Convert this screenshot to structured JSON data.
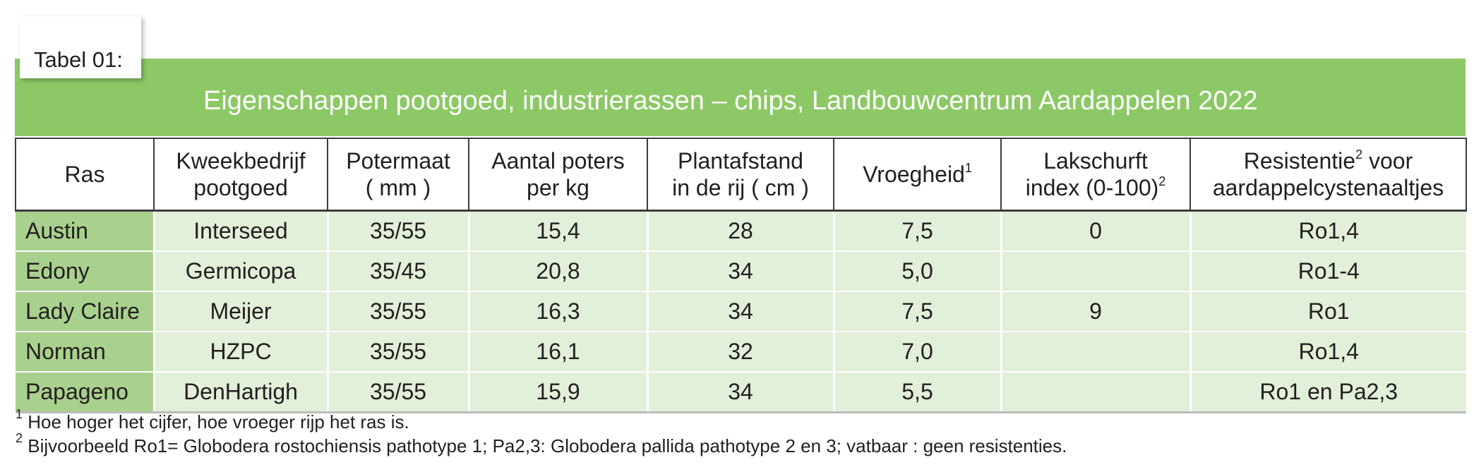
{
  "tab_label": "Tabel 01:",
  "title": "Eigenschappen pootgoed, industrierassen – chips, Landbouwcentrum Aardappelen 2022",
  "headers": [
    {
      "line1": "Ras",
      "line2": "",
      "sup": ""
    },
    {
      "line1": "Kweekbedrijf",
      "line2": "pootgoed",
      "sup": ""
    },
    {
      "line1": "Potermaat",
      "line2": "( mm )",
      "sup": ""
    },
    {
      "line1": "Aantal poters",
      "line2": "per kg",
      "sup": ""
    },
    {
      "line1": "Plantafstand",
      "line2": "in de rij ( cm )",
      "sup": ""
    },
    {
      "line1": "Vroegheid",
      "line2": "",
      "sup": "1"
    },
    {
      "line1": "Lakschurft",
      "line2": "index (0-100)",
      "sup": "2"
    },
    {
      "line1": "Resistentie",
      "line2": "aardappelcystenaaltjes",
      "sup": "2",
      "line1_after": " voor"
    }
  ],
  "rows": [
    {
      "ras": "Austin",
      "kweekbedrijf": "Interseed",
      "potermaat": "35/55",
      "poters_per_kg": "15,4",
      "plantafstand": "28",
      "vroegheid": "7,5",
      "lakschurft": "0",
      "resistentie": "Ro1,4"
    },
    {
      "ras": "Edony",
      "kweekbedrijf": "Germicopa",
      "potermaat": "35/45",
      "poters_per_kg": "20,8",
      "plantafstand": "34",
      "vroegheid": "5,0",
      "lakschurft": "",
      "resistentie": "Ro1-4"
    },
    {
      "ras": "Lady Claire",
      "kweekbedrijf": "Meijer",
      "potermaat": "35/55",
      "poters_per_kg": "16,3",
      "plantafstand": "34",
      "vroegheid": "7,5",
      "lakschurft": "9",
      "resistentie": "Ro1"
    },
    {
      "ras": "Norman",
      "kweekbedrijf": "HZPC",
      "potermaat": "35/55",
      "poters_per_kg": "16,1",
      "plantafstand": "32",
      "vroegheid": "7,0",
      "lakschurft": "",
      "resistentie": "Ro1,4"
    },
    {
      "ras": "Papageno",
      "kweekbedrijf": "DenHartigh",
      "potermaat": "35/55",
      "poters_per_kg": "15,9",
      "plantafstand": "34",
      "vroegheid": "5,5",
      "lakschurft": "",
      "resistentie": "Ro1 en Pa2,3"
    }
  ],
  "footnotes": [
    {
      "mark": "1",
      "text": " Hoe hoger het cijfer, hoe vroeger rijp het ras is."
    },
    {
      "mark": "2",
      "text": " Bijvoorbeeld Ro1= Globodera rostochiensis pathotype 1; Pa2,3: Globodera pallida pathotype 2 en 3; vatbaar : geen resistenties."
    }
  ],
  "colors": {
    "title_band": "#8cc865",
    "ras_column": "#a9d18e",
    "data_cells": "#e2efd9"
  }
}
